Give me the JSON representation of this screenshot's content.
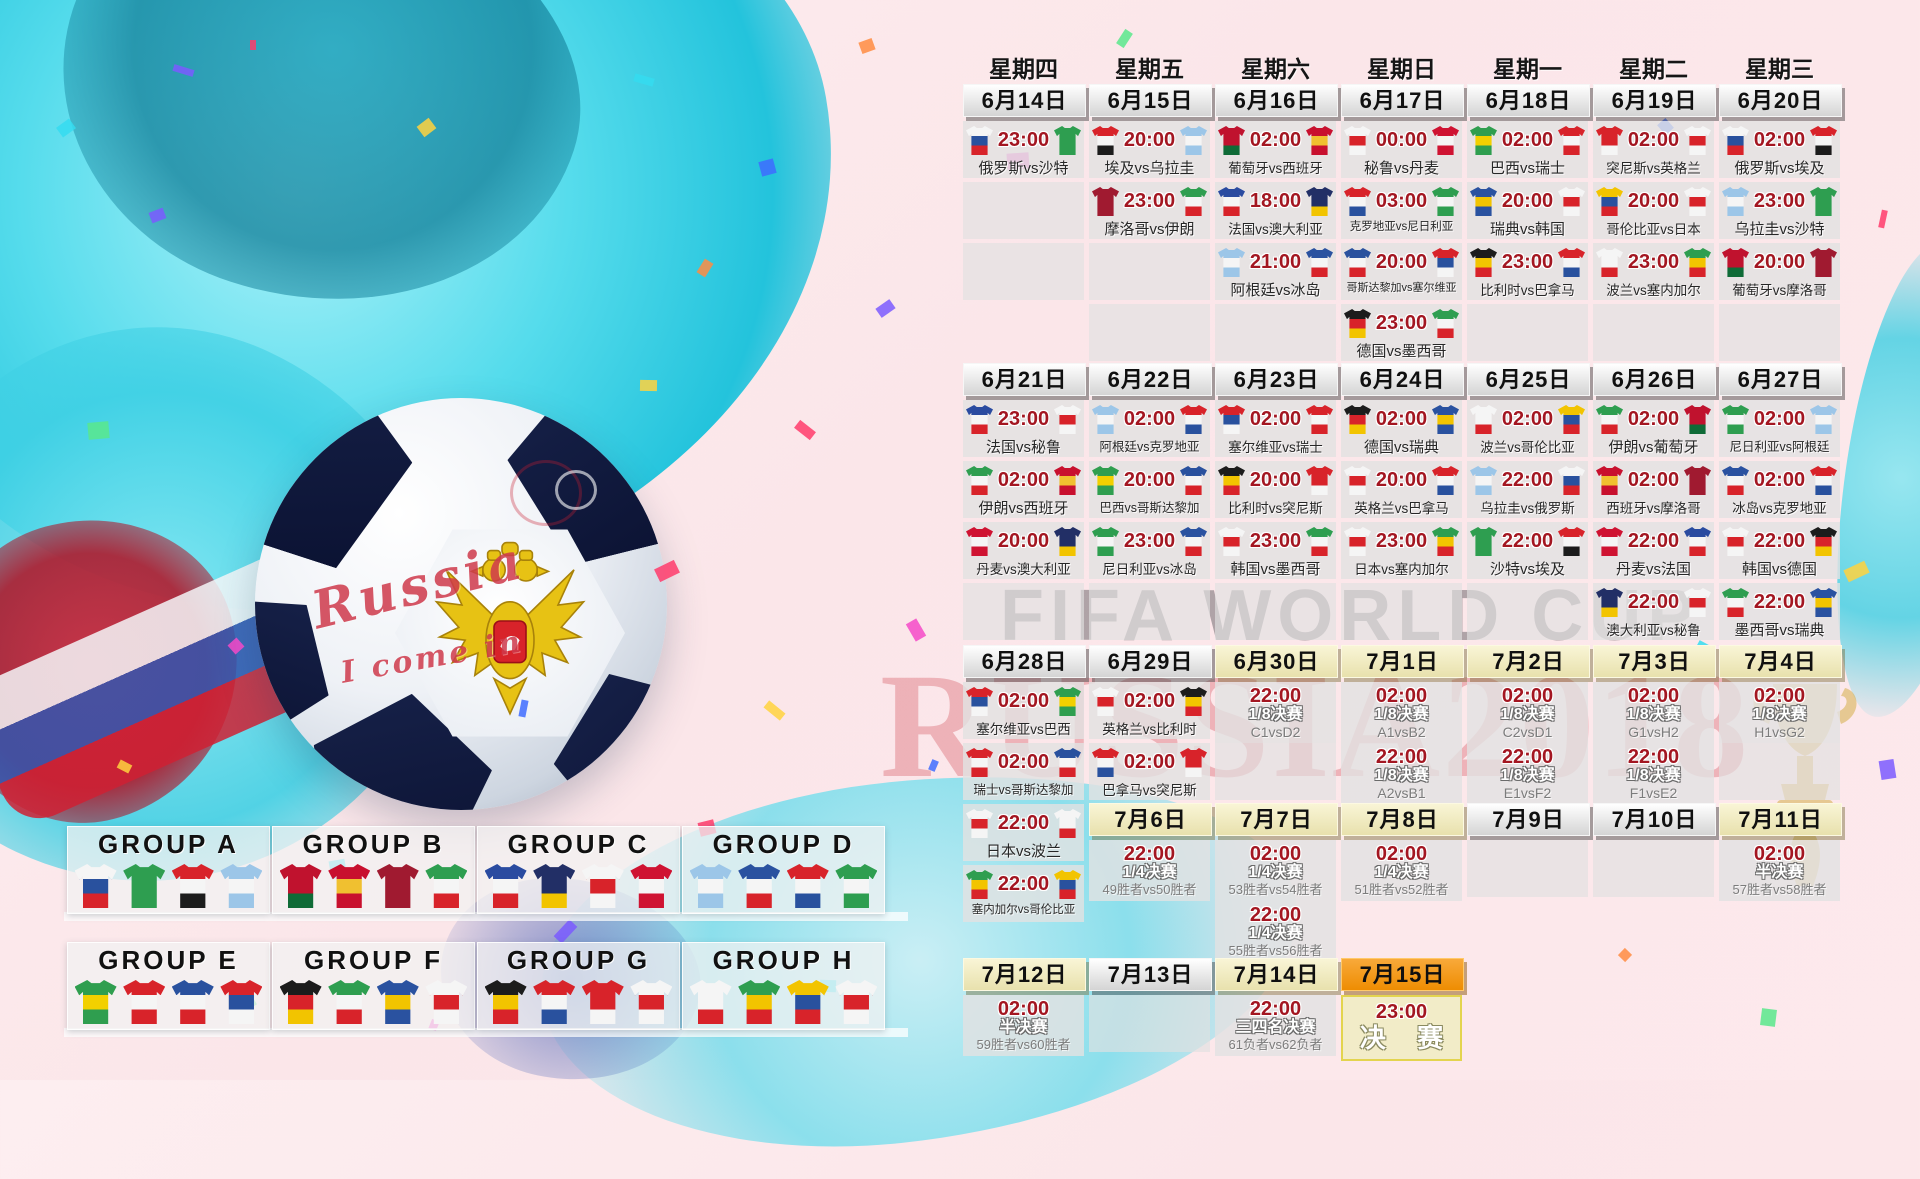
{
  "watermark": {
    "line1": "FIFA WORLD CUP",
    "line2": "RUSSIA2018"
  },
  "ball_graffiti": {
    "line1": "Russia",
    "line2": "I come in"
  },
  "weekdays": [
    "星期四",
    "星期五",
    "星期六",
    "星期日",
    "星期一",
    "星期二",
    "星期三"
  ],
  "teams": {
    "俄罗斯": [
      "#f5f5f5",
      "#29519e",
      "#d8232a"
    ],
    "沙特": [
      "#2e9e50"
    ],
    "埃及": [
      "#d8232a",
      "#f5f5f5",
      "#1c1c1c"
    ],
    "乌拉圭": [
      "#9cc6e8",
      "#f5f5f5",
      "#9cc6e8"
    ],
    "葡萄牙": [
      "#c0122e",
      "#c0122e",
      "#0f6b37"
    ],
    "西班牙": [
      "#c8102e",
      "#f0c030",
      "#c8102e"
    ],
    "摩洛哥": [
      "#a01a30"
    ],
    "伊朗": [
      "#2e9e50",
      "#f5f5f5",
      "#d8232a"
    ],
    "法国": [
      "#2a4ba0",
      "#f5f5f5",
      "#d8232a"
    ],
    "澳大利亚": [
      "#222f66",
      "#222f66",
      "#f2c400"
    ],
    "秘鲁": [
      "#f5f5f5",
      "#d8232a",
      "#f5f5f5"
    ],
    "丹麦": [
      "#cf1332",
      "#f5f5f5",
      "#cf1332"
    ],
    "阿根廷": [
      "#9cc6e8",
      "#f5f5f5",
      "#9cc6e8"
    ],
    "冰岛": [
      "#2a52a0",
      "#f5f5f5",
      "#d8232a"
    ],
    "克罗地亚": [
      "#d8232a",
      "#f5f5f5",
      "#29519e"
    ],
    "尼日利亚": [
      "#2e9e50",
      "#f5f5f5",
      "#2e9e50"
    ],
    "巴西": [
      "#2f9e4f",
      "#f2d000",
      "#2f9e4f"
    ],
    "瑞士": [
      "#d8232a",
      "#f5f5f5",
      "#d8232a"
    ],
    "哥斯达黎加": [
      "#29519e",
      "#f5f5f5",
      "#d8232a"
    ],
    "塞尔维亚": [
      "#d8232a",
      "#29519e",
      "#f5f5f5"
    ],
    "德国": [
      "#1c1c1c",
      "#d8232a",
      "#f2c400"
    ],
    "墨西哥": [
      "#2e9e50",
      "#f5f5f5",
      "#d8232a"
    ],
    "瑞典": [
      "#2a52a0",
      "#f2c400",
      "#2a52a0"
    ],
    "韩国": [
      "#f5f5f5",
      "#d8232a",
      "#f5f5f5"
    ],
    "比利时": [
      "#1c1c1c",
      "#f2c400",
      "#d8232a"
    ],
    "巴拿马": [
      "#d8232a",
      "#f5f5f5",
      "#29519e"
    ],
    "突尼斯": [
      "#d8232a",
      "#d8232a",
      "#f5f5f5"
    ],
    "英格兰": [
      "#f5f5f5",
      "#d8232a",
      "#f5f5f5"
    ],
    "波兰": [
      "#f5f5f5",
      "#f5f5f5",
      "#d8232a"
    ],
    "塞内加尔": [
      "#2e9e50",
      "#f2c400",
      "#d8232a"
    ],
    "哥伦比亚": [
      "#f2c400",
      "#29519e",
      "#d8232a"
    ],
    "日本": [
      "#f5f5f5",
      "#d8232a",
      "#f5f5f5"
    ]
  },
  "stage_labels": {
    "r16": "1/8决赛",
    "qf": "1/4决赛",
    "sf": "半决赛",
    "third": "三四名决赛",
    "final": "决赛"
  },
  "weeks": [
    {
      "columns": [
        {
          "date": "6月14日",
          "style": "w",
          "cells": [
            {
              "type": "match",
              "time": "23:00",
              "name": "俄罗斯vs沙特"
            },
            {
              "type": "empty"
            },
            {
              "type": "empty"
            }
          ]
        },
        {
          "date": "6月15日",
          "style": "w",
          "cells": [
            {
              "type": "match",
              "time": "20:00",
              "name": "埃及vs乌拉圭"
            },
            {
              "type": "match",
              "time": "23:00",
              "name": "摩洛哥vs伊朗"
            },
            {
              "type": "empty"
            },
            {
              "type": "empty"
            }
          ]
        },
        {
          "date": "6月16日",
          "style": "w",
          "cells": [
            {
              "type": "match",
              "time": "02:00",
              "name": "葡萄牙vs西班牙"
            },
            {
              "type": "match",
              "time": "18:00",
              "name": "法国vs澳大利亚"
            },
            {
              "type": "match",
              "time": "21:00",
              "name": "阿根廷vs冰岛"
            },
            {
              "type": "empty"
            }
          ]
        },
        {
          "date": "6月17日",
          "style": "w",
          "cells": [
            {
              "type": "match",
              "time": "00:00",
              "name": "秘鲁vs丹麦"
            },
            {
              "type": "match",
              "time": "03:00",
              "name": "克罗地亚vs尼日利亚"
            },
            {
              "type": "match",
              "time": "20:00",
              "name": "哥斯达黎加vs塞尔维亚"
            },
            {
              "type": "match",
              "time": "23:00",
              "name": "德国vs墨西哥"
            }
          ]
        },
        {
          "date": "6月18日",
          "style": "w",
          "cells": [
            {
              "type": "match",
              "time": "02:00",
              "name": "巴西vs瑞士"
            },
            {
              "type": "match",
              "time": "20:00",
              "name": "瑞典vs韩国"
            },
            {
              "type": "match",
              "time": "23:00",
              "name": "比利时vs巴拿马"
            },
            {
              "type": "empty"
            }
          ]
        },
        {
          "date": "6月19日",
          "style": "w",
          "cells": [
            {
              "type": "match",
              "time": "02:00",
              "name": "突尼斯vs英格兰"
            },
            {
              "type": "match",
              "time": "20:00",
              "name": "哥伦比亚vs日本"
            },
            {
              "type": "match",
              "time": "23:00",
              "name": "波兰vs塞内加尔"
            },
            {
              "type": "empty"
            }
          ]
        },
        {
          "date": "6月20日",
          "style": "w",
          "cells": [
            {
              "type": "match",
              "time": "02:00",
              "name": "俄罗斯vs埃及"
            },
            {
              "type": "match",
              "time": "23:00",
              "name": "乌拉圭vs沙特"
            },
            {
              "type": "match",
              "time": "20:00",
              "name": "葡萄牙vs摩洛哥"
            },
            {
              "type": "empty"
            }
          ]
        }
      ]
    },
    {
      "columns": [
        {
          "date": "6月21日",
          "style": "w",
          "cells": [
            {
              "type": "match",
              "time": "23:00",
              "name": "法国vs秘鲁"
            },
            {
              "type": "match",
              "time": "02:00",
              "name": "伊朗vs西班牙"
            },
            {
              "type": "match",
              "time": "20:00",
              "name": "丹麦vs澳大利亚"
            },
            {
              "type": "empty"
            }
          ]
        },
        {
          "date": "6月22日",
          "style": "w",
          "cells": [
            {
              "type": "match",
              "time": "02:00",
              "name": "阿根廷vs克罗地亚"
            },
            {
              "type": "match",
              "time": "20:00",
              "name": "巴西vs哥斯达黎加"
            },
            {
              "type": "match",
              "time": "23:00",
              "name": "尼日利亚vs冰岛"
            },
            {
              "type": "empty"
            }
          ]
        },
        {
          "date": "6月23日",
          "style": "w",
          "cells": [
            {
              "type": "match",
              "time": "02:00",
              "name": "塞尔维亚vs瑞士"
            },
            {
              "type": "match",
              "time": "20:00",
              "name": "比利时vs突尼斯"
            },
            {
              "type": "match",
              "time": "23:00",
              "name": "韩国vs墨西哥"
            },
            {
              "type": "empty"
            }
          ]
        },
        {
          "date": "6月24日",
          "style": "w",
          "cells": [
            {
              "type": "match",
              "time": "02:00",
              "name": "德国vs瑞典"
            },
            {
              "type": "match",
              "time": "20:00",
              "name": "英格兰vs巴拿马"
            },
            {
              "type": "match",
              "time": "23:00",
              "name": "日本vs塞内加尔"
            },
            {
              "type": "empty"
            }
          ]
        },
        {
          "date": "6月25日",
          "style": "w",
          "cells": [
            {
              "type": "match",
              "time": "02:00",
              "name": "波兰vs哥伦比亚"
            },
            {
              "type": "match",
              "time": "22:00",
              "name": "乌拉圭vs俄罗斯"
            },
            {
              "type": "match",
              "time": "22:00",
              "name": "沙特vs埃及"
            },
            {
              "type": "empty"
            }
          ]
        },
        {
          "date": "6月26日",
          "style": "w",
          "cells": [
            {
              "type": "match",
              "time": "02:00",
              "name": "伊朗vs葡萄牙"
            },
            {
              "type": "match",
              "time": "02:00",
              "name": "西班牙vs摩洛哥"
            },
            {
              "type": "match",
              "time": "22:00",
              "name": "丹麦vs法国"
            },
            {
              "type": "match",
              "time": "22:00",
              "name": "澳大利亚vs秘鲁"
            }
          ]
        },
        {
          "date": "6月27日",
          "style": "w",
          "cells": [
            {
              "type": "match",
              "time": "02:00",
              "name": "尼日利亚vs阿根廷"
            },
            {
              "type": "match",
              "time": "02:00",
              "name": "冰岛vs克罗地亚"
            },
            {
              "type": "match",
              "time": "22:00",
              "name": "韩国vs德国"
            },
            {
              "type": "match",
              "time": "22:00",
              "name": "墨西哥vs瑞典"
            }
          ]
        }
      ]
    },
    {
      "columns": [
        {
          "date": "6月28日",
          "style": "w",
          "cells": [
            {
              "type": "match",
              "time": "02:00",
              "name": "塞尔维亚vs巴西"
            },
            {
              "type": "match",
              "time": "02:00",
              "name": "瑞士vs哥斯达黎加"
            },
            {
              "type": "match",
              "time": "22:00",
              "name": "日本vs波兰"
            },
            {
              "type": "match",
              "time": "22:00",
              "name": "塞内加尔vs哥伦比亚"
            }
          ]
        },
        {
          "date": "6月29日",
          "style": "w",
          "cells": [
            {
              "type": "match",
              "time": "02:00",
              "name": "英格兰vs比利时"
            },
            {
              "type": "match",
              "time": "02:00",
              "name": "巴拿马vs突尼斯"
            }
          ]
        },
        {
          "date": "6月30日",
          "style": "b",
          "cells": [
            {
              "type": "ko",
              "time": "22:00",
              "stage": "1/8决赛",
              "vs": "C1vsD2"
            },
            {
              "type": "empty"
            }
          ]
        },
        {
          "date": "7月1日",
          "style": "b",
          "cells": [
            {
              "type": "ko",
              "time": "02:00",
              "stage": "1/8决赛",
              "vs": "A1vsB2"
            },
            {
              "type": "ko",
              "time": "22:00",
              "stage": "1/8决赛",
              "vs": "A2vsB1"
            }
          ]
        },
        {
          "date": "7月2日",
          "style": "b",
          "cells": [
            {
              "type": "ko",
              "time": "02:00",
              "stage": "1/8决赛",
              "vs": "C2vsD1"
            },
            {
              "type": "ko",
              "time": "22:00",
              "stage": "1/8决赛",
              "vs": "E1vsF2"
            }
          ]
        },
        {
          "date": "7月3日",
          "style": "b",
          "cells": [
            {
              "type": "ko",
              "time": "02:00",
              "stage": "1/8决赛",
              "vs": "G1vsH2"
            },
            {
              "type": "ko",
              "time": "22:00",
              "stage": "1/8决赛",
              "vs": "F1vsE2"
            }
          ]
        },
        {
          "date": "7月4日",
          "style": "b",
          "cells": [
            {
              "type": "ko",
              "time": "02:00",
              "stage": "1/8决赛",
              "vs": "H1vsG2"
            },
            {
              "type": "empty"
            }
          ]
        }
      ]
    },
    {
      "columns": [
        null,
        {
          "date": "7月6日",
          "style": "b",
          "cells": [
            {
              "type": "ko",
              "time": "22:00",
              "stage": "1/4决赛",
              "vs": "49胜者vs50胜者"
            }
          ]
        },
        {
          "date": "7月7日",
          "style": "b",
          "cells": [
            {
              "type": "ko",
              "time": "02:00",
              "stage": "1/4决赛",
              "vs": "53胜者vs54胜者"
            },
            {
              "type": "ko",
              "time": "22:00",
              "stage": "1/4决赛",
              "vs": "55胜者vs56胜者"
            }
          ]
        },
        {
          "date": "7月8日",
          "style": "b",
          "cells": [
            {
              "type": "ko",
              "time": "02:00",
              "stage": "1/4决赛",
              "vs": "51胜者vs52胜者"
            }
          ]
        },
        {
          "date": "7月9日",
          "style": "w",
          "cells": [
            {
              "type": "empty"
            }
          ]
        },
        {
          "date": "7月10日",
          "style": "w",
          "cells": [
            {
              "type": "empty"
            }
          ]
        },
        {
          "date": "7月11日",
          "style": "b",
          "cells": [
            {
              "type": "ko",
              "time": "02:00",
              "stage": "半决赛",
              "vs": "57胜者vs58胜者"
            }
          ]
        }
      ]
    },
    {
      "columns": [
        {
          "date": "7月12日",
          "style": "b",
          "cells": [
            {
              "type": "ko",
              "time": "02:00",
              "stage": "半决赛",
              "vs": "59胜者vs60胜者"
            }
          ]
        },
        {
          "date": "7月13日",
          "style": "w",
          "cells": [
            {
              "type": "empty"
            }
          ]
        },
        {
          "date": "7月14日",
          "style": "b",
          "cells": [
            {
              "type": "ko",
              "time": "22:00",
              "stage": "三四名决赛",
              "vs": "61负者vs62负者"
            }
          ]
        },
        {
          "date": "7月15日",
          "style": "o",
          "cells": [
            {
              "type": "final",
              "time": "23:00",
              "label": "决 赛"
            }
          ]
        },
        null,
        null,
        null
      ]
    }
  ],
  "groups": [
    {
      "label": "GROUP A",
      "teams": [
        "俄罗斯",
        "沙特",
        "埃及",
        "乌拉圭"
      ]
    },
    {
      "label": "GROUP B",
      "teams": [
        "葡萄牙",
        "西班牙",
        "摩洛哥",
        "伊朗"
      ]
    },
    {
      "label": "GROUP C",
      "teams": [
        "法国",
        "澳大利亚",
        "秘鲁",
        "丹麦"
      ]
    },
    {
      "label": "GROUP D",
      "teams": [
        "阿根廷",
        "冰岛",
        "克罗地亚",
        "尼日利亚"
      ]
    },
    {
      "label": "GROUP E",
      "teams": [
        "巴西",
        "瑞士",
        "哥斯达黎加",
        "塞尔维亚"
      ]
    },
    {
      "label": "GROUP F",
      "teams": [
        "德国",
        "墨西哥",
        "瑞典",
        "韩国"
      ]
    },
    {
      "label": "GROUP G",
      "teams": [
        "比利时",
        "巴拿马",
        "突尼斯",
        "英格兰"
      ]
    },
    {
      "label": "GROUP H",
      "teams": [
        "波兰",
        "塞内加尔",
        "哥伦比亚",
        "日本"
      ]
    }
  ],
  "colors": {
    "accent_time": "#a31621",
    "bar_white": "#e0e0e0",
    "bar_beige": "#ece5b4",
    "bar_orange": "#f09a12",
    "splash_cyan": "#2fd3e8",
    "watermark_red": "#cd3746"
  }
}
